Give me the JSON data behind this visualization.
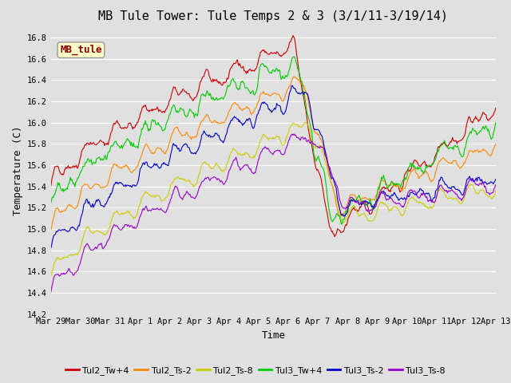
{
  "title": "MB Tule Tower: Tule Temps 2 & 3 (3/1/11-3/19/14)",
  "xlabel": "Time",
  "ylabel": "Temperature (C)",
  "ylim": [
    14.2,
    16.9
  ],
  "annotation": "MB_tule",
  "background_color": "#e0e0e0",
  "plot_bg_color": "#e0e0e0",
  "grid_color": "#ffffff",
  "series": [
    {
      "label": "Tul2_Tw+4",
      "color": "#cc0000"
    },
    {
      "label": "Tul2_Ts-2",
      "color": "#ff8800"
    },
    {
      "label": "Tul2_Ts-8",
      "color": "#cccc00"
    },
    {
      "label": "Tul3_Tw+4",
      "color": "#00cc00"
    },
    {
      "label": "Tul3_Ts-2",
      "color": "#0000cc"
    },
    {
      "label": "Tul3_Ts-8",
      "color": "#9900cc"
    }
  ],
  "xtick_labels": [
    "Mar 29",
    "Mar 30",
    "Mar 31",
    "Apr 1",
    "Apr 2",
    "Apr 3",
    "Apr 4",
    "Apr 5",
    "Apr 6",
    "Apr 7",
    "Apr 8",
    "Apr 9",
    "Apr 10",
    "Apr 11",
    "Apr 12",
    "Apr 13"
  ],
  "title_fontsize": 11,
  "axis_fontsize": 9,
  "tick_fontsize": 7.5,
  "legend_fontsize": 8
}
